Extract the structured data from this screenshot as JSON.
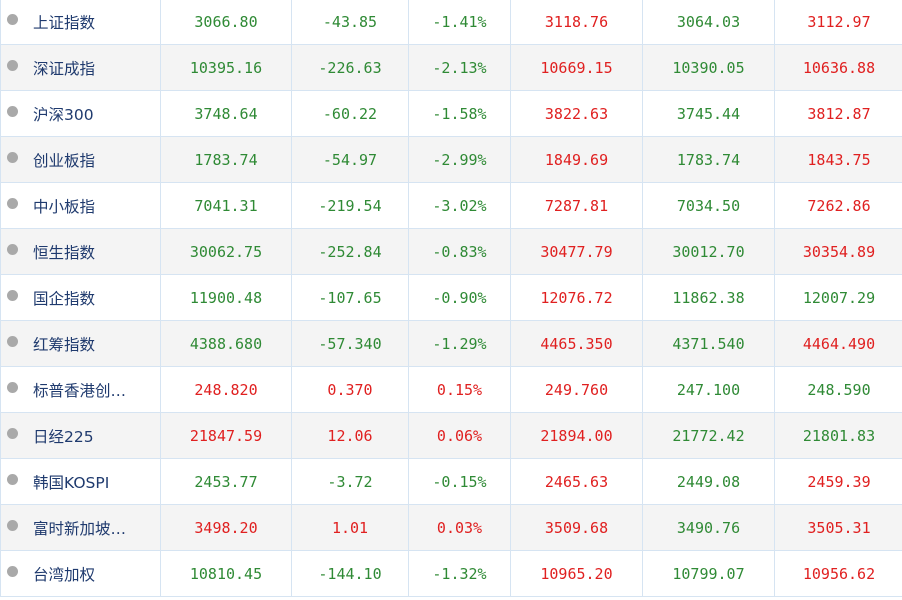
{
  "colors": {
    "up": "#e02020",
    "down": "#2f8a35",
    "name": "#1f3a6e",
    "border": "#d6e4f2",
    "row_alt": "#f4f4f4"
  },
  "rows": [
    {
      "name": "上证指数",
      "latest": "3066.80",
      "change": "-43.85",
      "pct": "-1.41%",
      "open": "3118.76",
      "low": "3064.03",
      "prev": "3112.97",
      "dir": [
        "down",
        "down",
        "down",
        "up",
        "down",
        "up"
      ]
    },
    {
      "name": "深证成指",
      "latest": "10395.16",
      "change": "-226.63",
      "pct": "-2.13%",
      "open": "10669.15",
      "low": "10390.05",
      "prev": "10636.88",
      "dir": [
        "down",
        "down",
        "down",
        "up",
        "down",
        "up"
      ]
    },
    {
      "name": "沪深300",
      "latest": "3748.64",
      "change": "-60.22",
      "pct": "-1.58%",
      "open": "3822.63",
      "low": "3745.44",
      "prev": "3812.87",
      "dir": [
        "down",
        "down",
        "down",
        "up",
        "down",
        "up"
      ]
    },
    {
      "name": "创业板指",
      "latest": "1783.74",
      "change": "-54.97",
      "pct": "-2.99%",
      "open": "1849.69",
      "low": "1783.74",
      "prev": "1843.75",
      "dir": [
        "down",
        "down",
        "down",
        "up",
        "down",
        "up"
      ]
    },
    {
      "name": "中小板指",
      "latest": "7041.31",
      "change": "-219.54",
      "pct": "-3.02%",
      "open": "7287.81",
      "low": "7034.50",
      "prev": "7262.86",
      "dir": [
        "down",
        "down",
        "down",
        "up",
        "down",
        "up"
      ]
    },
    {
      "name": "恒生指数",
      "latest": "30062.75",
      "change": "-252.84",
      "pct": "-0.83%",
      "open": "30477.79",
      "low": "30012.70",
      "prev": "30354.89",
      "dir": [
        "down",
        "down",
        "down",
        "up",
        "down",
        "up"
      ]
    },
    {
      "name": "国企指数",
      "latest": "11900.48",
      "change": "-107.65",
      "pct": "-0.90%",
      "open": "12076.72",
      "low": "11862.38",
      "prev": "12007.29",
      "dir": [
        "down",
        "down",
        "down",
        "up",
        "down",
        "down"
      ]
    },
    {
      "name": "红筹指数",
      "latest": "4388.680",
      "change": "-57.340",
      "pct": "-1.29%",
      "open": "4465.350",
      "low": "4371.540",
      "prev": "4464.490",
      "dir": [
        "down",
        "down",
        "down",
        "up",
        "down",
        "up"
      ]
    },
    {
      "name": "标普香港创…",
      "latest": "248.820",
      "change": "0.370",
      "pct": "0.15%",
      "open": "249.760",
      "low": "247.100",
      "prev": "248.590",
      "dir": [
        "up",
        "up",
        "up",
        "up",
        "down",
        "down"
      ]
    },
    {
      "name": "日经225",
      "latest": "21847.59",
      "change": "12.06",
      "pct": "0.06%",
      "open": "21894.00",
      "low": "21772.42",
      "prev": "21801.83",
      "dir": [
        "up",
        "up",
        "up",
        "up",
        "down",
        "down"
      ]
    },
    {
      "name": "韩国KOSPI",
      "latest": "2453.77",
      "change": "-3.72",
      "pct": "-0.15%",
      "open": "2465.63",
      "low": "2449.08",
      "prev": "2459.39",
      "dir": [
        "down",
        "down",
        "down",
        "up",
        "down",
        "up"
      ]
    },
    {
      "name": "富时新加坡…",
      "latest": "3498.20",
      "change": "1.01",
      "pct": "0.03%",
      "open": "3509.68",
      "low": "3490.76",
      "prev": "3505.31",
      "dir": [
        "up",
        "up",
        "up",
        "up",
        "down",
        "up"
      ]
    },
    {
      "name": "台湾加权",
      "latest": "10810.45",
      "change": "-144.10",
      "pct": "-1.32%",
      "open": "10965.20",
      "low": "10799.07",
      "prev": "10956.62",
      "dir": [
        "down",
        "down",
        "down",
        "up",
        "down",
        "up"
      ]
    }
  ]
}
